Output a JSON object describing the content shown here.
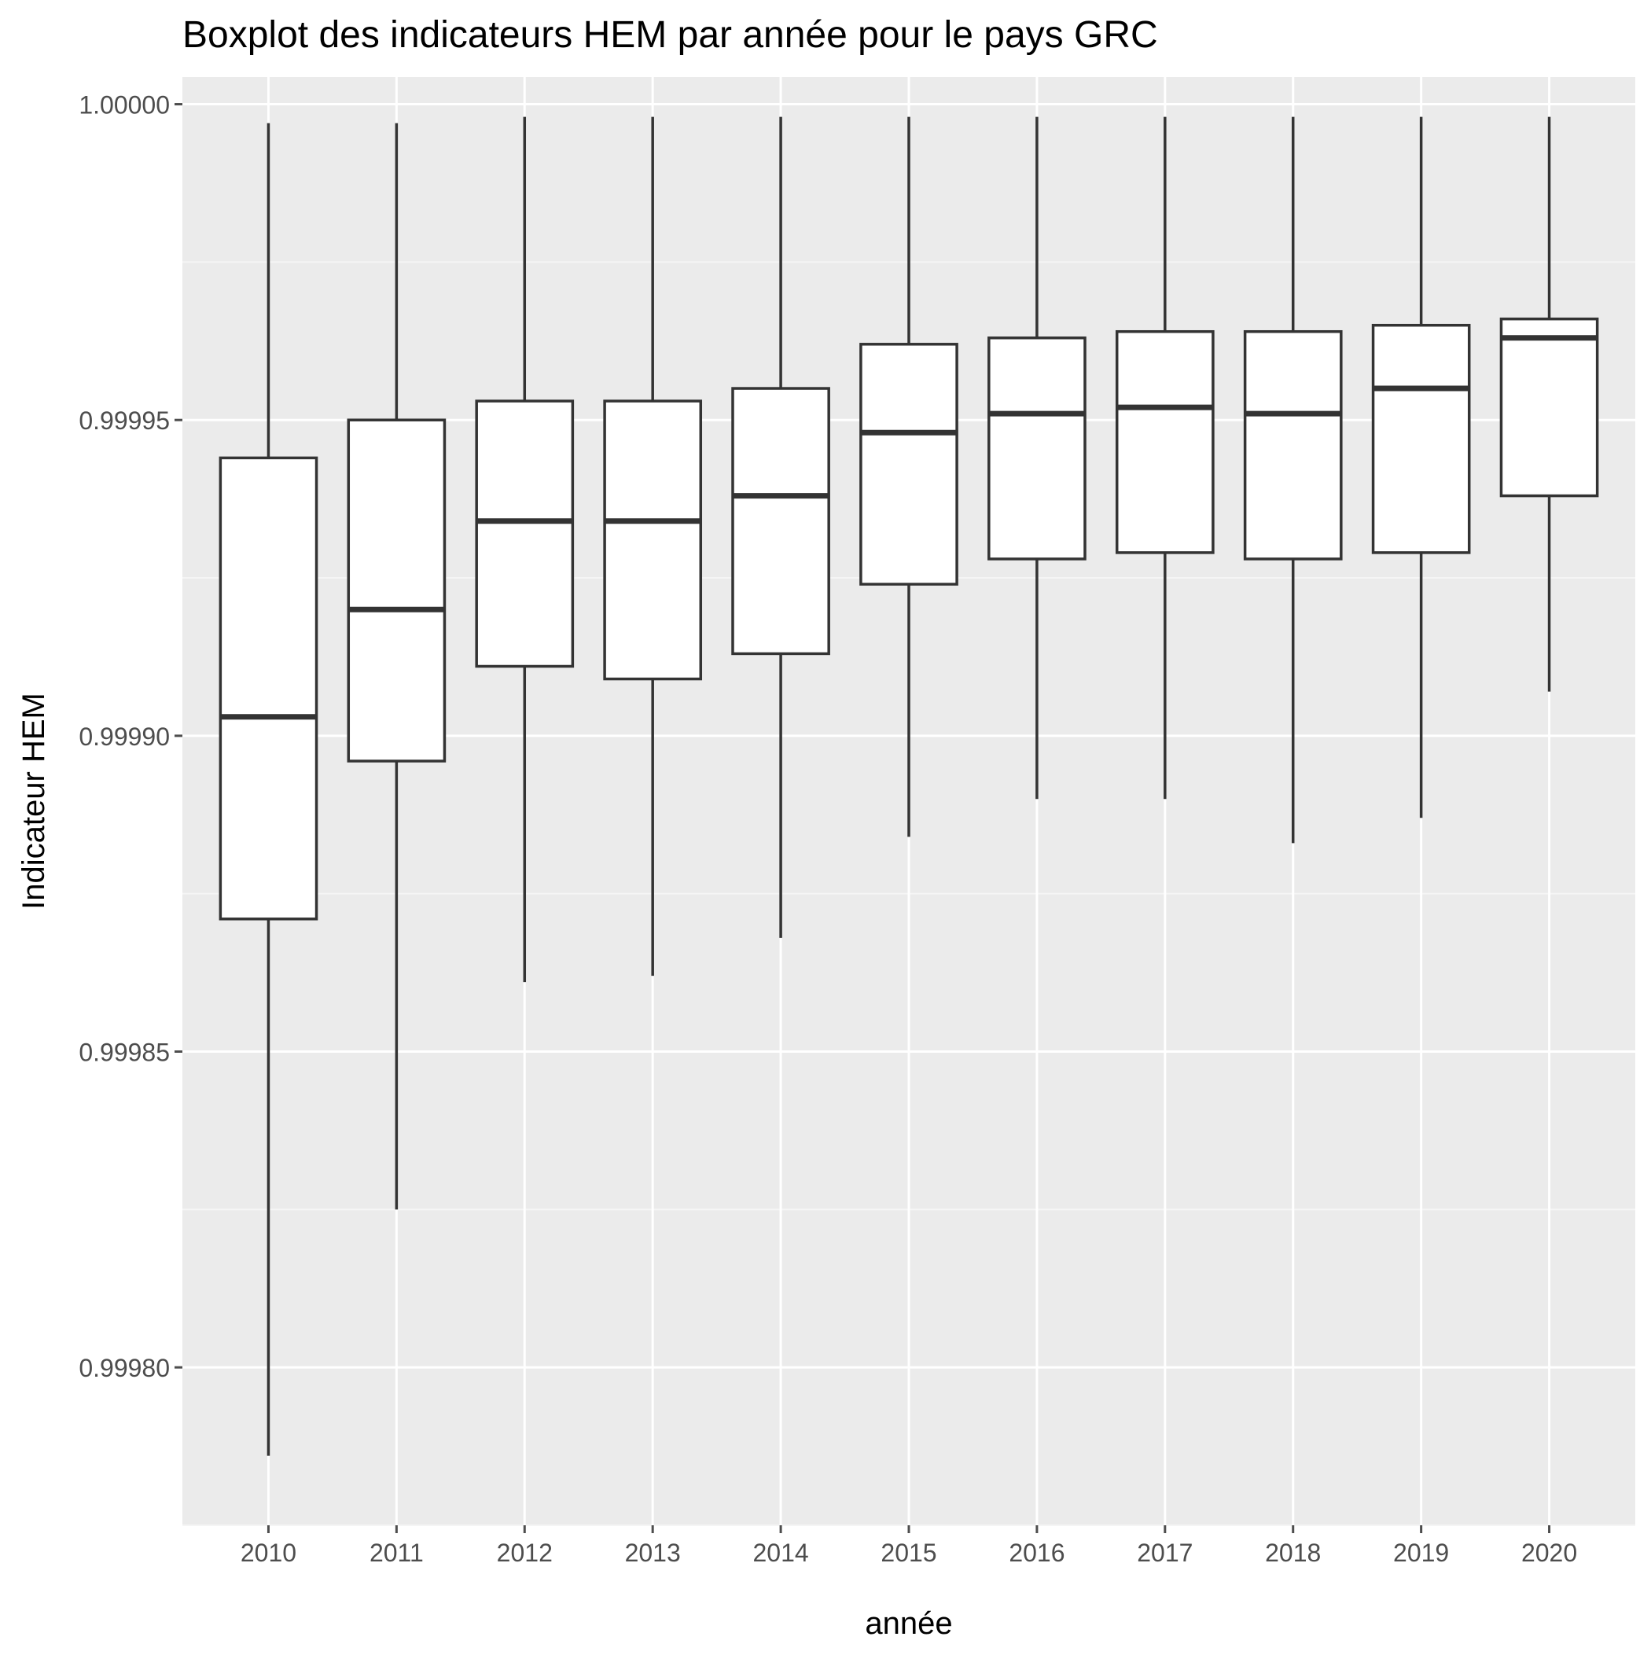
{
  "chart_data": {
    "type": "boxplot",
    "title": "Boxplot des indicateurs HEM par année pour le pays GRC",
    "xlabel": "année",
    "ylabel": "Indicateur HEM",
    "ylim": [
      0.999775,
      1.0000043
    ],
    "y_ticks": [
      0.9998,
      0.99985,
      0.9999,
      0.99995,
      1.0
    ],
    "y_tick_labels": [
      "0.99980",
      "0.99985",
      "0.99990",
      "0.99995",
      "1.00000"
    ],
    "categories": [
      "2010",
      "2011",
      "2012",
      "2013",
      "2014",
      "2015",
      "2016",
      "2017",
      "2018",
      "2019",
      "2020"
    ],
    "boxes": [
      {
        "year": "2010",
        "min": 0.999786,
        "q1": 0.999871,
        "median": 0.999903,
        "q3": 0.999944,
        "max": 0.999997
      },
      {
        "year": "2011",
        "min": 0.999825,
        "q1": 0.999896,
        "median": 0.99992,
        "q3": 0.99995,
        "max": 0.999997
      },
      {
        "year": "2012",
        "min": 0.999861,
        "q1": 0.999911,
        "median": 0.999934,
        "q3": 0.999953,
        "max": 0.999998
      },
      {
        "year": "2013",
        "min": 0.999862,
        "q1": 0.999909,
        "median": 0.999934,
        "q3": 0.999953,
        "max": 0.999998
      },
      {
        "year": "2014",
        "min": 0.999868,
        "q1": 0.999913,
        "median": 0.999938,
        "q3": 0.999955,
        "max": 0.999998
      },
      {
        "year": "2015",
        "min": 0.999884,
        "q1": 0.999924,
        "median": 0.999948,
        "q3": 0.999962,
        "max": 0.999998
      },
      {
        "year": "2016",
        "min": 0.99989,
        "q1": 0.999928,
        "median": 0.999951,
        "q3": 0.999963,
        "max": 0.999998
      },
      {
        "year": "2017",
        "min": 0.99989,
        "q1": 0.999929,
        "median": 0.999952,
        "q3": 0.999964,
        "max": 0.999998
      },
      {
        "year": "2018",
        "min": 0.999883,
        "q1": 0.999928,
        "median": 0.999951,
        "q3": 0.999964,
        "max": 0.999998
      },
      {
        "year": "2019",
        "min": 0.999887,
        "q1": 0.999929,
        "median": 0.999955,
        "q3": 0.999965,
        "max": 0.999998
      },
      {
        "year": "2020",
        "min": 0.999907,
        "q1": 0.999938,
        "median": 0.999963,
        "q3": 0.999966,
        "max": 0.999998
      }
    ],
    "grid": true,
    "legend": "none",
    "colors": {
      "panel_background": "#EBEBEB",
      "grid_major": "#FFFFFF",
      "grid_minor": "#F5F5F5",
      "box_fill": "#FFFFFF",
      "box_stroke": "#333333",
      "tick_label": "#4D4D4D",
      "title": "#000000"
    }
  }
}
